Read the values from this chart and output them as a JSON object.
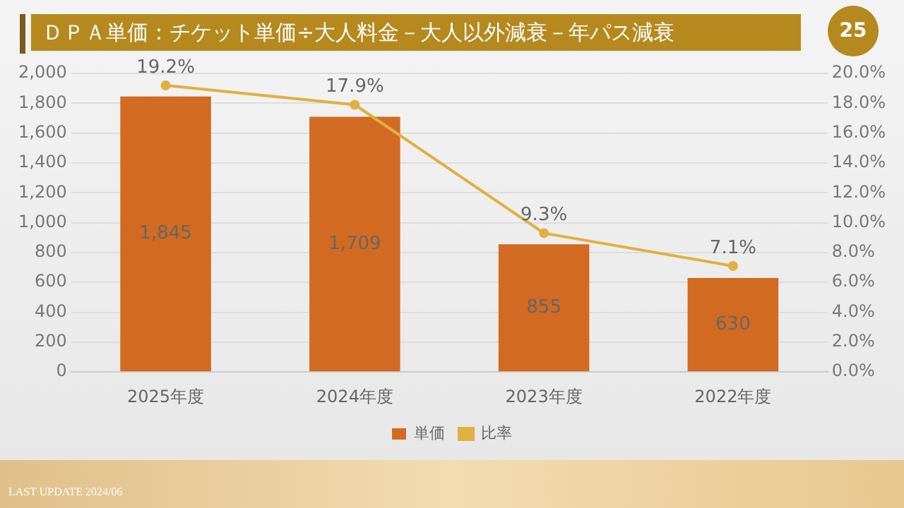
{
  "chart_data": {
    "type": "bar",
    "title": "ＤＰＡ単価：チケット単価÷大人料金－大人以外減衰－年パス減衰",
    "categories": [
      "2025年度",
      "2024年度",
      "2023年度",
      "2022年度"
    ],
    "series": [
      {
        "name": "単価",
        "color": "#d26a22",
        "values": [
          1845,
          1709,
          855,
          630
        ],
        "value_labels": [
          "1,845",
          "1,709",
          "855",
          "630"
        ]
      },
      {
        "name": "比率",
        "type": "line",
        "axis": "y2",
        "color": "#e0b040",
        "values": [
          19.2,
          17.9,
          9.3,
          7.1
        ],
        "value_labels": [
          "19.2%",
          "17.9%",
          "9.3%",
          "7.1%"
        ]
      }
    ],
    "ylim": [
      0,
      2000
    ],
    "yticks": [
      0,
      200,
      400,
      600,
      800,
      {
        "value": 1000,
        "label": "1,000"
      },
      {
        "value": 1200,
        "label": "1,200"
      },
      {
        "value": 1400,
        "label": "1,400"
      },
      {
        "value": 1600,
        "label": "1,600"
      },
      {
        "value": 1800,
        "label": "1,800"
      },
      {
        "value": 2000,
        "label": "2,000"
      }
    ],
    "y2lim": [
      0,
      20
    ],
    "y2ticks": [
      {
        "value": 0,
        "label": "0.0%"
      },
      {
        "value": 2,
        "label": "2.0%"
      },
      {
        "value": 4,
        "label": "4.0%"
      },
      {
        "value": 6,
        "label": "6.0%"
      },
      {
        "value": 8,
        "label": "8.0%"
      },
      {
        "value": 10,
        "label": "10.0%"
      },
      {
        "value": 12,
        "label": "12.0%"
      },
      {
        "value": 14,
        "label": "14.0%"
      },
      {
        "value": 16,
        "label": "16.0%"
      },
      {
        "value": 18,
        "label": "18.0%"
      },
      {
        "value": 20,
        "label": "20.0%"
      }
    ],
    "grid": "y",
    "legend": "bottom",
    "marker": "circle",
    "annotations": [
      "25",
      "LAST UPDATE 2024/06"
    ]
  }
}
